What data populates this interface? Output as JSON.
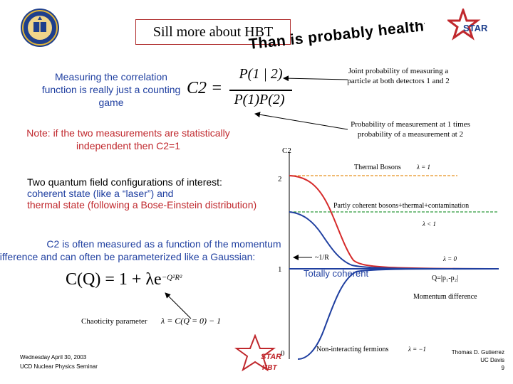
{
  "header": {
    "title": "Sill more about HBT",
    "slogan": "Than is probably healthy"
  },
  "logos": {
    "left": "university-seal",
    "right_text": "STAR"
  },
  "left_notes": {
    "measuring": "Measuring the correlation function is really just a counting game",
    "independent": "Note: if the two measurements are statistically independent then C2=1"
  },
  "formula": {
    "lhs": "C2 =",
    "numerator": "P(1 | 2)",
    "denominator": "P(1)P(2)"
  },
  "annotations": {
    "joint": "Joint probability of measuring a particle at both detectors 1 and 2",
    "product": "Probability of measurement at 1 times probability of a measurement at 2"
  },
  "interest": {
    "intro": "Two quantum field configurations of interest:",
    "coherent": "coherent state (like a “laser”) and",
    "thermal": "thermal state (following a Bose-Einstein distribution)"
  },
  "gaussian": {
    "line1": "C2 is often measured as a function of the momentum",
    "line2": "difference and can often be parameterized like a Gaussian:",
    "formula_lhs": "C(Q) = 1 + λe",
    "exponent": "−Q²R²"
  },
  "chaoticity": {
    "label": "Chaoticity parameter",
    "formula": "λ = C(Q = 0) − 1"
  },
  "plot": {
    "y_label": "C2",
    "y_tick_2": "2",
    "y_tick_1": "1",
    "y_tick_0": "0",
    "thermal_label": "Thermal Bosons",
    "thermal_lambda": "λ = 1",
    "partly_label": "Partly coherent bosons+thermal+contamination",
    "partly_lambda": "λ < 1",
    "width_label": "~1/R",
    "zero_lambda": "λ = 0",
    "coherent_label": "Totally coherent",
    "x_label_q": "Q=|p₁-p₂|",
    "x_label": "Momentum difference",
    "fermion_label": "Non-interacting fermions",
    "fermion_lambda": "λ = −1"
  },
  "footer": {
    "date": "Wednesday April 30, 2003",
    "seminar": "UCD Nuclear Physics Seminar",
    "author": "Thomas D. Gutierrez",
    "affiliation": "UC Davis",
    "page": "9",
    "star_top": "STAR",
    "star_bottom": "HBT"
  },
  "colors": {
    "thermal_curve": "#d62a2a",
    "coherent_curve": "#1f3fa0",
    "fermion_curve": "#1f3fa0",
    "dashed_orange": "#e8901e",
    "dashed_green": "#2e9a3c",
    "blue_text": "#1f3fa0",
    "red_text": "#c0282d"
  }
}
